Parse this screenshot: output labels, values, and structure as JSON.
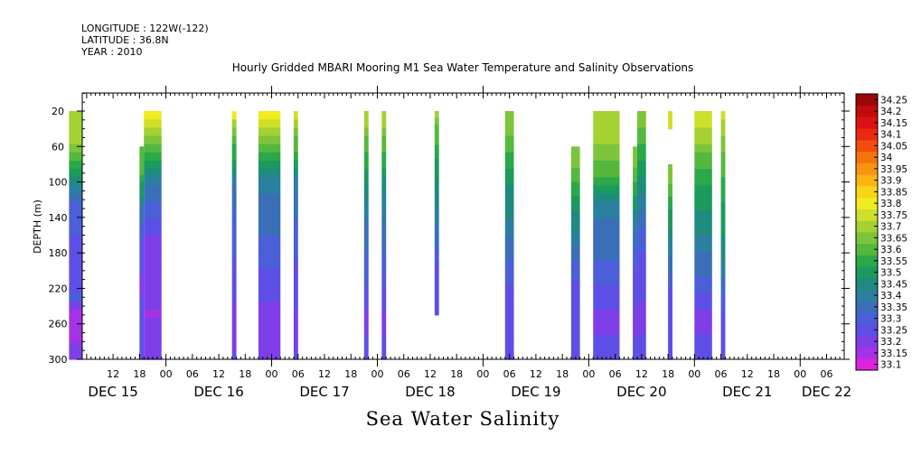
{
  "header": {
    "longitude": "LONGITUDE : 122W(-122)",
    "latitude": "LATITUDE : 36.8N",
    "year": "YEAR : 2010"
  },
  "chart_data": {
    "type": "heatmap",
    "title": "Hourly Gridded MBARI Mooring M1 Sea Water Temperature and Salinity Observations",
    "bottom_title": "Sea Water Salinity",
    "ylabel": "DEPTH (m)",
    "ylim": [
      300,
      0
    ],
    "y_ticks": [
      20,
      60,
      100,
      140,
      180,
      220,
      260,
      300
    ],
    "x_hour_ticks": [
      {
        "h": 12,
        "label": "12"
      },
      {
        "h": 18,
        "label": "18"
      },
      {
        "h": 24,
        "label": "00"
      },
      {
        "h": 30,
        "label": "06"
      },
      {
        "h": 36,
        "label": "12"
      },
      {
        "h": 42,
        "label": "18"
      },
      {
        "h": 48,
        "label": "00"
      },
      {
        "h": 54,
        "label": "06"
      },
      {
        "h": 60,
        "label": "12"
      },
      {
        "h": 66,
        "label": "18"
      },
      {
        "h": 72,
        "label": "00"
      },
      {
        "h": 78,
        "label": "06"
      },
      {
        "h": 84,
        "label": "12"
      },
      {
        "h": 90,
        "label": "18"
      },
      {
        "h": 96,
        "label": "00"
      },
      {
        "h": 102,
        "label": "06"
      },
      {
        "h": 108,
        "label": "12"
      },
      {
        "h": 114,
        "label": "18"
      },
      {
        "h": 120,
        "label": "00"
      },
      {
        "h": 126,
        "label": "06"
      },
      {
        "h": 132,
        "label": "12"
      },
      {
        "h": 138,
        "label": "18"
      },
      {
        "h": 144,
        "label": "00"
      },
      {
        "h": 150,
        "label": "06"
      },
      {
        "h": 156,
        "label": "12"
      },
      {
        "h": 162,
        "label": "18"
      },
      {
        "h": 168,
        "label": "00"
      },
      {
        "h": 174,
        "label": "06"
      }
    ],
    "x_day_labels": [
      {
        "h": 12,
        "label": "DEC 15"
      },
      {
        "h": 36,
        "label": "DEC 16"
      },
      {
        "h": 60,
        "label": "DEC 17"
      },
      {
        "h": 84,
        "label": "DEC 18"
      },
      {
        "h": 108,
        "label": "DEC 19"
      },
      {
        "h": 132,
        "label": "DEC 20"
      },
      {
        "h": 156,
        "label": "DEC 21"
      },
      {
        "h": 174,
        "label": "DEC 22"
      }
    ],
    "xlim_hours": [
      5,
      178
    ],
    "x_origin": "DEC 15 00:00",
    "colorbar": {
      "levels": [
        "33.1",
        "33.15",
        "33.2",
        "33.25",
        "33.3",
        "33.35",
        "33.4",
        "33.45",
        "33.5",
        "33.55",
        "33.6",
        "33.65",
        "33.7",
        "33.75",
        "33.8",
        "33.85",
        "33.9",
        "33.95",
        "34",
        "34.05",
        "34.1",
        "34.15",
        "34.2",
        "34.25"
      ],
      "colors": [
        "#dd22dd",
        "#a433e6",
        "#7e3ee8",
        "#5d4fe6",
        "#4a5fd8",
        "#3a6fb8",
        "#2b7fa0",
        "#1f8a80",
        "#1a9a5c",
        "#2aa84a",
        "#55b83e",
        "#7cc43a",
        "#a4d232",
        "#cfe02a",
        "#f0ec1e",
        "#f8d518",
        "#fbb414",
        "#f99410",
        "#f6730e",
        "#f24d0c",
        "#ea2a10",
        "#dc1212",
        "#c20c0c",
        "#9a0808"
      ]
    },
    "columns": [
      {
        "start": 2,
        "end": 5,
        "top": 20,
        "bottom": 300,
        "profile": [
          12,
          12,
          12,
          12,
          11,
          10,
          9,
          8,
          7,
          6,
          5,
          4,
          4,
          4,
          4,
          3,
          3,
          3,
          3,
          3,
          3,
          3,
          4,
          2,
          1,
          1,
          1,
          1,
          2,
          2
        ]
      },
      {
        "start": 18,
        "end": 19,
        "top": 60,
        "bottom": 300,
        "profile": [
          10,
          10,
          10,
          10,
          9,
          8,
          8,
          7,
          6,
          5,
          5,
          4,
          4,
          3,
          3,
          3,
          3,
          3,
          2,
          2,
          2,
          3,
          3,
          3,
          3,
          3,
          3,
          3,
          3,
          3
        ]
      },
      {
        "start": 19,
        "end": 23,
        "top": 20,
        "bottom": 300,
        "profile": [
          14,
          13,
          12,
          11,
          10,
          9,
          8,
          7,
          6,
          5,
          5,
          4,
          4,
          3,
          3,
          2,
          2,
          2,
          2,
          2,
          2,
          2,
          2,
          2,
          1,
          2,
          2,
          2,
          2,
          2
        ]
      },
      {
        "start": 39,
        "end": 40,
        "top": 20,
        "bottom": 300,
        "profile": [
          14,
          12,
          11,
          10,
          9,
          9,
          8,
          7,
          6,
          5,
          5,
          5,
          4,
          4,
          4,
          4,
          4,
          4,
          3,
          3,
          3,
          3,
          3,
          2,
          2,
          2,
          2,
          2,
          2,
          3
        ]
      },
      {
        "start": 45,
        "end": 50,
        "top": 20,
        "bottom": 300,
        "profile": [
          14,
          13,
          12,
          11,
          10,
          9,
          8,
          7,
          6,
          6,
          5,
          5,
          5,
          5,
          5,
          4,
          4,
          4,
          4,
          3,
          3,
          3,
          3,
          2,
          2,
          2,
          2,
          2,
          2,
          2
        ]
      },
      {
        "start": 53,
        "end": 54,
        "top": 20,
        "bottom": 300,
        "profile": [
          13,
          12,
          11,
          10,
          10,
          9,
          8,
          7,
          6,
          6,
          5,
          5,
          5,
          4,
          4,
          4,
          4,
          4,
          3,
          3,
          3,
          3,
          3,
          3,
          2,
          2,
          2,
          2,
          2,
          3
        ]
      },
      {
        "start": 69,
        "end": 70,
        "top": 20,
        "bottom": 300,
        "profile": [
          12,
          12,
          11,
          10,
          10,
          9,
          9,
          8,
          8,
          7,
          7,
          6,
          6,
          5,
          5,
          5,
          5,
          4,
          4,
          4,
          4,
          3,
          3,
          3,
          2,
          2,
          2,
          3,
          3,
          3
        ]
      },
      {
        "start": 73,
        "end": 74,
        "top": 20,
        "bottom": 300,
        "profile": [
          12,
          12,
          11,
          10,
          10,
          9,
          9,
          8,
          7,
          7,
          6,
          6,
          6,
          5,
          5,
          5,
          5,
          4,
          4,
          4,
          4,
          3,
          3,
          3,
          2,
          2,
          2,
          3,
          3,
          3
        ]
      },
      {
        "start": 85,
        "end": 86,
        "top": 20,
        "bottom": 250,
        "profile": [
          12,
          11,
          10,
          10,
          10,
          9,
          9,
          8,
          8,
          8,
          7,
          7,
          7,
          7,
          6,
          6,
          6,
          5,
          5,
          5,
          4,
          4,
          3,
          3,
          3,
          3,
          3,
          3,
          3,
          3
        ]
      },
      {
        "start": 101,
        "end": 103,
        "top": 20,
        "bottom": 300,
        "profile": [
          11,
          11,
          11,
          10,
          10,
          9,
          9,
          8,
          8,
          7,
          7,
          7,
          7,
          6,
          6,
          5,
          5,
          5,
          4,
          4,
          4,
          3,
          3,
          3,
          3,
          3,
          3,
          3,
          3,
          3
        ]
      },
      {
        "start": 116,
        "end": 118,
        "top": 60,
        "bottom": 300,
        "profile": [
          11,
          11,
          11,
          10,
          10,
          9,
          9,
          8,
          8,
          7,
          7,
          7,
          6,
          6,
          5,
          5,
          4,
          4,
          4,
          3,
          3,
          3,
          3,
          3,
          3,
          3,
          3,
          3,
          3,
          3
        ]
      },
      {
        "start": 121,
        "end": 127,
        "top": 20,
        "bottom": 300,
        "profile": [
          12,
          12,
          12,
          12,
          11,
          11,
          10,
          10,
          9,
          8,
          7,
          6,
          6,
          5,
          5,
          5,
          5,
          5,
          4,
          4,
          4,
          3,
          3,
          3,
          2,
          2,
          2,
          3,
          3,
          3
        ]
      },
      {
        "start": 130,
        "end": 131,
        "top": 60,
        "bottom": 300,
        "profile": [
          11,
          11,
          11,
          10,
          10,
          9,
          9,
          8,
          8,
          7,
          6,
          6,
          5,
          5,
          4,
          4,
          4,
          3,
          3,
          3,
          3,
          3,
          3,
          2,
          2,
          2,
          2,
          3,
          3,
          3
        ]
      },
      {
        "start": 131,
        "end": 133,
        "top": 20,
        "bottom": 300,
        "profile": [
          11,
          11,
          10,
          10,
          9,
          9,
          8,
          8,
          7,
          7,
          6,
          6,
          5,
          5,
          4,
          4,
          4,
          3,
          3,
          3,
          3,
          3,
          3,
          2,
          2,
          2,
          2,
          3,
          3,
          3
        ]
      },
      {
        "start": 138,
        "end": 139,
        "top": 20,
        "bottom": 40,
        "profile": [
          13,
          13,
          13,
          13,
          13,
          13,
          13,
          13,
          13,
          13,
          13,
          13,
          13,
          13,
          13,
          13,
          13,
          13,
          13,
          13,
          13,
          13,
          13,
          13,
          13,
          13,
          13,
          13,
          13,
          13
        ]
      },
      {
        "start": 138,
        "end": 139,
        "top": 80,
        "bottom": 300,
        "profile": [
          11,
          11,
          11,
          10,
          10,
          9,
          9,
          8,
          8,
          8,
          7,
          7,
          6,
          6,
          5,
          5,
          5,
          4,
          4,
          3,
          3,
          3,
          3,
          3,
          3,
          3,
          3,
          3,
          3,
          3
        ]
      },
      {
        "start": 144,
        "end": 148,
        "top": 20,
        "bottom": 300,
        "profile": [
          13,
          13,
          12,
          12,
          11,
          10,
          10,
          9,
          9,
          8,
          8,
          8,
          7,
          7,
          7,
          6,
          6,
          5,
          5,
          5,
          4,
          4,
          3,
          3,
          2,
          2,
          2,
          3,
          3,
          3
        ]
      },
      {
        "start": 150,
        "end": 151,
        "top": 20,
        "bottom": 300,
        "profile": [
          13,
          12,
          12,
          11,
          11,
          10,
          10,
          10,
          9,
          9,
          9,
          8,
          8,
          8,
          8,
          7,
          7,
          7,
          6,
          6,
          5,
          5,
          4,
          4,
          3,
          3,
          3,
          3,
          3,
          3
        ]
      }
    ]
  }
}
